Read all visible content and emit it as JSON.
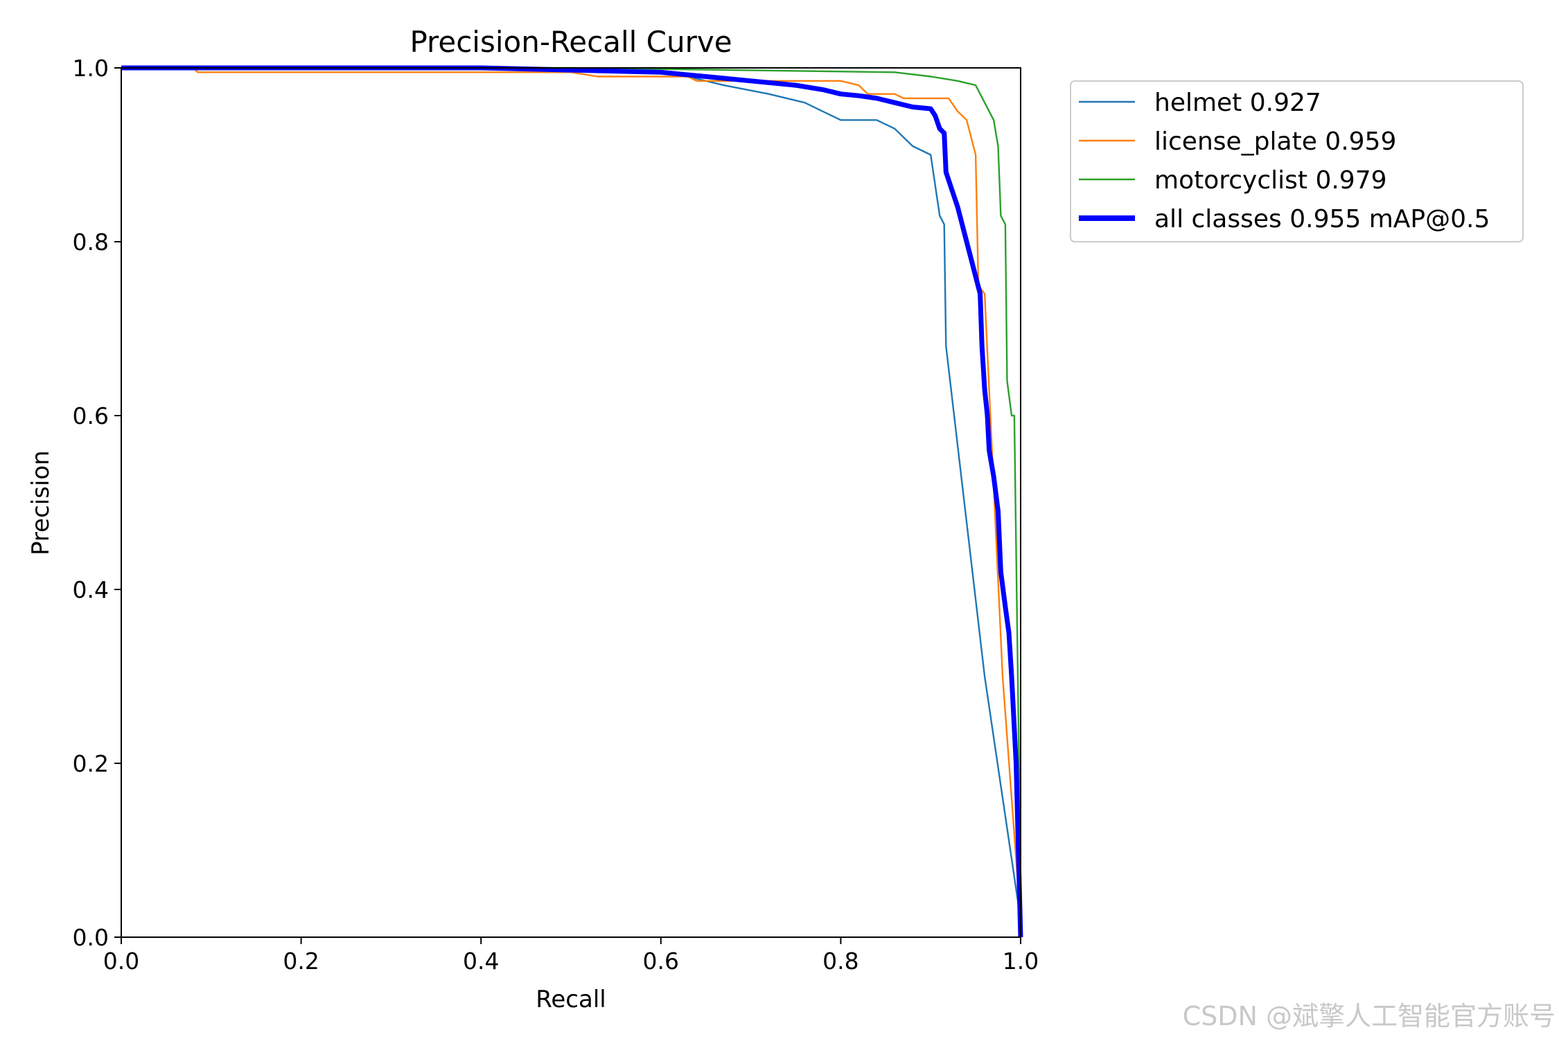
{
  "chart_data": {
    "type": "line",
    "title": "Precision-Recall Curve",
    "xlabel": "Recall",
    "ylabel": "Precision",
    "xlim": [
      0,
      1
    ],
    "ylim": [
      0,
      1
    ],
    "x_ticks": [
      "0.0",
      "0.2",
      "0.4",
      "0.6",
      "0.8",
      "1.0"
    ],
    "y_ticks": [
      "0.0",
      "0.2",
      "0.4",
      "0.6",
      "0.8",
      "1.0"
    ],
    "grid": false,
    "legend_position": "outside-top-right",
    "series": [
      {
        "name": "helmet 0.927",
        "color": "#1f77b4",
        "points": [
          [
            0,
            1
          ],
          [
            0.1,
            1
          ],
          [
            0.4,
            1
          ],
          [
            0.6,
            0.995
          ],
          [
            0.63,
            0.99
          ],
          [
            0.67,
            0.98
          ],
          [
            0.72,
            0.97
          ],
          [
            0.76,
            0.96
          ],
          [
            0.78,
            0.95
          ],
          [
            0.8,
            0.94
          ],
          [
            0.84,
            0.94
          ],
          [
            0.86,
            0.93
          ],
          [
            0.88,
            0.91
          ],
          [
            0.9,
            0.9
          ],
          [
            0.91,
            0.83
          ],
          [
            0.915,
            0.82
          ],
          [
            0.917,
            0.68
          ],
          [
            0.96,
            0.3
          ],
          [
            1.0,
            0.02
          ]
        ]
      },
      {
        "name": "license_plate 0.959",
        "color": "#ff7f0e",
        "points": [
          [
            0,
            1
          ],
          [
            0.08,
            1
          ],
          [
            0.085,
            0.995
          ],
          [
            0.5,
            0.995
          ],
          [
            0.53,
            0.99
          ],
          [
            0.63,
            0.99
          ],
          [
            0.64,
            0.985
          ],
          [
            0.8,
            0.985
          ],
          [
            0.82,
            0.98
          ],
          [
            0.83,
            0.97
          ],
          [
            0.86,
            0.97
          ],
          [
            0.87,
            0.965
          ],
          [
            0.92,
            0.965
          ],
          [
            0.93,
            0.95
          ],
          [
            0.94,
            0.94
          ],
          [
            0.95,
            0.9
          ],
          [
            0.953,
            0.75
          ],
          [
            0.96,
            0.74
          ],
          [
            0.98,
            0.3
          ],
          [
            1.0,
            0.02
          ]
        ]
      },
      {
        "name": "motorcyclist 0.979",
        "color": "#2ca02c",
        "points": [
          [
            0,
            1
          ],
          [
            0.5,
            1
          ],
          [
            0.86,
            0.995
          ],
          [
            0.9,
            0.99
          ],
          [
            0.93,
            0.985
          ],
          [
            0.95,
            0.98
          ],
          [
            0.96,
            0.96
          ],
          [
            0.97,
            0.94
          ],
          [
            0.975,
            0.91
          ],
          [
            0.978,
            0.83
          ],
          [
            0.983,
            0.82
          ],
          [
            0.985,
            0.64
          ],
          [
            0.99,
            0.6
          ],
          [
            0.993,
            0.6
          ],
          [
            1.0,
            0.06
          ]
        ]
      },
      {
        "name": "all classes 0.955 mAP@0.5",
        "color": "#0000ff",
        "points": [
          [
            0,
            1
          ],
          [
            0.4,
            1
          ],
          [
            0.6,
            0.995
          ],
          [
            0.65,
            0.99
          ],
          [
            0.7,
            0.985
          ],
          [
            0.75,
            0.98
          ],
          [
            0.78,
            0.975
          ],
          [
            0.8,
            0.97
          ],
          [
            0.82,
            0.968
          ],
          [
            0.84,
            0.965
          ],
          [
            0.86,
            0.96
          ],
          [
            0.88,
            0.955
          ],
          [
            0.9,
            0.953
          ],
          [
            0.905,
            0.945
          ],
          [
            0.91,
            0.93
          ],
          [
            0.915,
            0.925
          ],
          [
            0.917,
            0.88
          ],
          [
            0.93,
            0.84
          ],
          [
            0.94,
            0.8
          ],
          [
            0.95,
            0.76
          ],
          [
            0.955,
            0.74
          ],
          [
            0.957,
            0.68
          ],
          [
            0.96,
            0.63
          ],
          [
            0.963,
            0.6
          ],
          [
            0.965,
            0.56
          ],
          [
            0.97,
            0.53
          ],
          [
            0.975,
            0.49
          ],
          [
            0.978,
            0.42
          ],
          [
            0.983,
            0.38
          ],
          [
            0.987,
            0.35
          ],
          [
            0.99,
            0.3
          ],
          [
            0.995,
            0.2
          ],
          [
            1.0,
            0.0
          ]
        ]
      }
    ]
  },
  "watermark": "CSDN @斌擎人工智能官方账号"
}
